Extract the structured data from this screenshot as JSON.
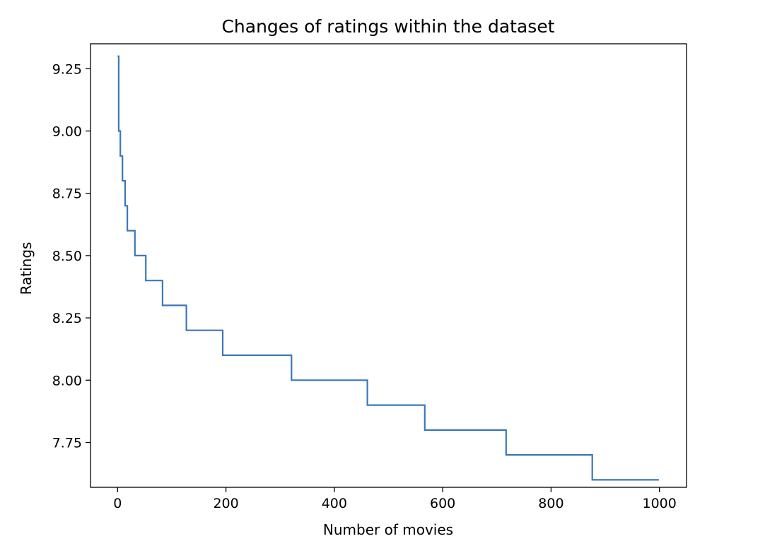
{
  "chart_data": {
    "type": "line",
    "title": "Changes of ratings within the dataset",
    "xlabel": "Number of movies",
    "ylabel": "Ratings",
    "xlim": [
      -50,
      1050
    ],
    "ylim": [
      7.57,
      9.35
    ],
    "xticks": [
      0,
      200,
      400,
      600,
      800,
      1000
    ],
    "xtick_labels": [
      "0",
      "200",
      "400",
      "600",
      "800",
      "1000"
    ],
    "yticks": [
      7.75,
      8.0,
      8.25,
      8.5,
      8.75,
      9.0,
      9.25
    ],
    "ytick_labels": [
      "7.75",
      "8.00",
      "8.25",
      "8.50",
      "8.75",
      "9.00",
      "9.25"
    ],
    "grid": false,
    "series": [
      {
        "color": "#3a78b8",
        "step": "post",
        "x": [
          0,
          2,
          5,
          9,
          14,
          18,
          32,
          52,
          83,
          127,
          194,
          321,
          461,
          567,
          717,
          876,
          999
        ],
        "y": [
          9.3,
          9.0,
          8.9,
          8.8,
          8.7,
          8.6,
          8.5,
          8.4,
          8.3,
          8.2,
          8.1,
          8.0,
          7.9,
          7.8,
          7.7,
          7.6,
          7.6
        ]
      }
    ]
  }
}
